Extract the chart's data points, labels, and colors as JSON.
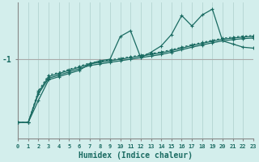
{
  "xlabel": "Humidex (Indice chaleur)",
  "background_color": "#d3eeec",
  "line_color": "#1a6b62",
  "grid_color": "#b8d8d5",
  "hline_color": "#aaaaaa",
  "x_values": [
    0,
    1,
    2,
    3,
    4,
    5,
    6,
    7,
    8,
    9,
    10,
    11,
    12,
    13,
    14,
    15,
    16,
    17,
    18,
    19,
    20,
    21,
    22,
    23
  ],
  "line_jagged": [
    -3.0,
    -3.0,
    -2.3,
    -1.65,
    -1.55,
    -1.45,
    -1.35,
    -1.15,
    -1.05,
    -1.0,
    -0.28,
    -0.1,
    -0.95,
    -0.78,
    -0.58,
    -0.22,
    0.38,
    0.05,
    0.4,
    0.58,
    -0.42,
    -0.52,
    -0.62,
    -0.65
  ],
  "line_smooth1": [
    -3.0,
    -3.0,
    -2.1,
    -1.6,
    -1.5,
    -1.4,
    -1.3,
    -1.2,
    -1.15,
    -1.1,
    -1.05,
    -1.0,
    -0.95,
    -0.9,
    -0.85,
    -0.78,
    -0.7,
    -0.62,
    -0.55,
    -0.48,
    -0.42,
    -0.38,
    -0.35,
    -0.33
  ],
  "line_smooth2": [
    -3.0,
    -3.0,
    -2.05,
    -1.55,
    -1.45,
    -1.35,
    -1.25,
    -1.15,
    -1.1,
    -1.05,
    -1.0,
    -0.95,
    -0.9,
    -0.85,
    -0.8,
    -0.73,
    -0.65,
    -0.57,
    -0.5,
    -0.43,
    -0.37,
    -0.33,
    -0.3,
    -0.28
  ],
  "line_dotted": [
    -3.0,
    -3.0,
    -2.0,
    -1.5,
    -1.42,
    -1.32,
    -1.22,
    -1.12,
    -1.07,
    -1.02,
    -0.97,
    -0.92,
    -0.87,
    -0.82,
    -0.77,
    -0.7,
    -0.62,
    -0.54,
    -0.47,
    -0.4,
    -0.34,
    -0.3,
    -0.27,
    -0.25
  ],
  "ytick_value": -1,
  "ylim": [
    -3.5,
    0.8
  ],
  "xlim": [
    0,
    23
  ]
}
